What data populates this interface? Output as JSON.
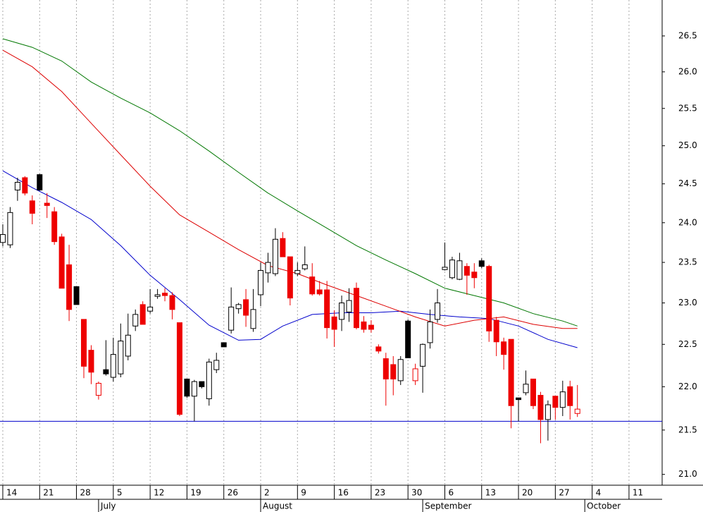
{
  "chart_data": {
    "type": "candlestick",
    "log_scale": true,
    "grid": "x",
    "xlim": [
      -0.38,
      89.5
    ],
    "ylim": [
      20.88,
      27.01
    ],
    "yticks": [
      {
        "value": 21,
        "label": "21.0"
      },
      21.5,
      {
        "value": 22,
        "label": "22.0"
      },
      22.5,
      {
        "value": 23,
        "label": "23.0"
      },
      23.5,
      {
        "value": 24,
        "label": "24.0"
      },
      24.5,
      {
        "value": 25,
        "label": "25.0"
      },
      25.5,
      {
        "value": 26,
        "label": "26.0"
      },
      26.5
    ],
    "xticks": [
      {
        "value": 0,
        "label": "14"
      },
      {
        "value": 5,
        "label": "21"
      },
      {
        "value": 10,
        "label": "28"
      },
      {
        "value": 15,
        "label": "5"
      },
      {
        "value": 20,
        "label": "12"
      },
      {
        "value": 25,
        "label": "19"
      },
      {
        "value": 30,
        "label": "26"
      },
      {
        "value": 35,
        "label": "2"
      },
      {
        "value": 40,
        "label": "9"
      },
      {
        "value": 45,
        "label": "16"
      },
      {
        "value": 50,
        "label": "23"
      },
      {
        "value": 55,
        "label": "30"
      },
      {
        "value": 60,
        "label": "6"
      },
      {
        "value": 65,
        "label": "13"
      },
      {
        "value": 70,
        "label": "20"
      },
      {
        "value": 75,
        "label": "27"
      },
      {
        "value": 80,
        "label": "4"
      },
      {
        "value": 85,
        "label": "11"
      }
    ],
    "month_ticks": [
      {
        "value": 13,
        "label": "July"
      },
      {
        "value": 35,
        "label": "August"
      },
      {
        "value": 57,
        "label": "September"
      },
      {
        "value": 79,
        "label": "October"
      }
    ],
    "palette": {
      "r": "#ee0000",
      "k": "#000000"
    },
    "colors": [
      "k",
      "k",
      "k",
      "r",
      "r",
      "k",
      "r",
      "r",
      "r",
      "r",
      "k",
      "r",
      "r",
      "r",
      "k",
      "k",
      "k",
      "k",
      "k",
      "r",
      "k",
      "k",
      "r",
      "r",
      "r",
      "k",
      "k",
      "k",
      "k",
      "k",
      "k",
      "k",
      "k",
      "r",
      "k",
      "k",
      "k",
      "k",
      "r",
      "r",
      "k",
      "k",
      "r",
      "r",
      "r",
      "r",
      "k",
      "k",
      "r",
      "r",
      "r",
      "r",
      "r",
      "r",
      "k",
      "k",
      "r",
      "k",
      "k",
      "k",
      "k",
      "k",
      "k",
      "r",
      "r",
      "k",
      "r",
      "r",
      "r",
      "r",
      "k",
      "k",
      "r",
      "r",
      "k",
      "r",
      "k",
      "r",
      "r"
    ],
    "open": [
      23.75,
      23.72,
      24.42,
      24.58,
      24.28,
      24.62,
      24.25,
      24.14,
      23.82,
      23.47,
      23.2,
      22.8,
      22.43,
      21.9,
      22.2,
      22.11,
      22.15,
      22.36,
      22.72,
      22.98,
      22.9,
      23.08,
      23.12,
      23.09,
      22.76,
      22.09,
      21.89,
      22.06,
      21.86,
      22.2,
      22.52,
      22.67,
      22.93,
      23.04,
      22.69,
      23.1,
      23.37,
      23.36,
      23.8,
      23.57,
      23.36,
      23.42,
      23.32,
      23.16,
      23.16,
      22.83,
      22.8,
      22.89,
      23.18,
      22.77,
      22.73,
      22.47,
      22.33,
      22.26,
      22.07,
      22.78,
      22.07,
      22.24,
      22.52,
      22.8,
      23.41,
      23.31,
      23.29,
      23.45,
      23.38,
      23.52,
      23.45,
      22.79,
      22.53,
      22.56,
      21.87,
      21.93,
      22.09,
      21.9,
      21.62,
      21.89,
      21.76,
      22.0,
      21.69
    ],
    "high": [
      23.98,
      24.2,
      24.58,
      24.6,
      24.35,
      24.63,
      24.38,
      24.2,
      23.86,
      23.72,
      23.2,
      22.8,
      22.49,
      22.06,
      22.55,
      22.58,
      22.75,
      22.87,
      22.92,
      23.02,
      23.17,
      23.17,
      23.18,
      23.13,
      22.76,
      22.09,
      22.08,
      22.06,
      22.33,
      22.4,
      22.52,
      23.19,
      23.0,
      23.17,
      23.17,
      23.5,
      23.62,
      23.93,
      23.88,
      23.57,
      23.5,
      23.7,
      23.49,
      23.27,
      23.27,
      22.91,
      23.09,
      23.18,
      23.25,
      22.84,
      22.79,
      22.5,
      22.4,
      22.36,
      22.36,
      22.8,
      22.27,
      22.51,
      22.92,
      23.17,
      23.75,
      23.57,
      23.62,
      23.49,
      23.49,
      23.55,
      23.47,
      22.83,
      22.58,
      22.56,
      21.87,
      22.19,
      22.09,
      21.94,
      21.84,
      21.89,
      22.07,
      22.07,
      22.02
    ],
    "low": [
      23.7,
      23.68,
      24.28,
      24.35,
      23.98,
      24.41,
      24.06,
      23.72,
      23.18,
      22.78,
      22.98,
      22.1,
      22.03,
      21.85,
      22.13,
      22.06,
      22.11,
      22.31,
      22.66,
      22.74,
      22.87,
      23.05,
      23.02,
      22.8,
      21.66,
      21.87,
      21.6,
      21.98,
      21.78,
      22.16,
      22.47,
      22.63,
      22.87,
      22.71,
      22.65,
      22.96,
      23.25,
      23.33,
      23.57,
      22.97,
      23.33,
      23.4,
      23.09,
      23.09,
      22.57,
      22.47,
      22.66,
      22.77,
      22.68,
      22.64,
      22.64,
      22.39,
      21.78,
      21.9,
      22.02,
      22.34,
      22.02,
      21.93,
      22.45,
      22.76,
      23.4,
      23.29,
      23.28,
      23.1,
      23.18,
      23.43,
      22.53,
      22.36,
      22.2,
      21.52,
      21.6,
      21.9,
      21.74,
      21.35,
      21.38,
      21.62,
      21.66,
      21.62,
      21.65
    ],
    "close": [
      23.85,
      24.13,
      24.52,
      24.38,
      24.12,
      24.42,
      24.22,
      23.76,
      23.18,
      22.92,
      22.98,
      22.24,
      22.17,
      22.04,
      22.15,
      22.38,
      22.54,
      22.61,
      22.86,
      22.74,
      22.95,
      23.1,
      23.09,
      22.92,
      21.68,
      21.89,
      22.06,
      22.0,
      22.29,
      22.31,
      22.47,
      22.95,
      22.98,
      22.85,
      22.92,
      23.4,
      23.5,
      23.79,
      23.57,
      23.06,
      23.4,
      23.47,
      23.11,
      23.11,
      22.7,
      22.68,
      23.0,
      23.03,
      22.7,
      22.68,
      22.68,
      22.42,
      22.09,
      22.09,
      22.32,
      22.34,
      22.21,
      22.5,
      22.77,
      23.0,
      23.44,
      23.53,
      23.52,
      23.34,
      23.31,
      23.45,
      22.66,
      22.53,
      22.38,
      21.78,
      21.85,
      22.03,
      21.78,
      21.62,
      21.79,
      21.76,
      21.94,
      21.78,
      21.74
    ],
    "series": [
      {
        "color": "#0000cc",
        "x": [
          0,
          4,
          8,
          12,
          16,
          20,
          24,
          28,
          32,
          35,
          38,
          42,
          46,
          50,
          54,
          58,
          62,
          66,
          70,
          74,
          78
        ],
        "values": [
          24.67,
          24.45,
          24.26,
          24.04,
          23.71,
          23.34,
          23.04,
          22.73,
          22.55,
          22.56,
          22.72,
          22.86,
          22.88,
          22.88,
          22.9,
          22.86,
          22.83,
          22.81,
          22.72,
          22.56,
          22.46
        ]
      },
      {
        "color": "#dd0000",
        "x": [
          0,
          4,
          8,
          12,
          16,
          20,
          24,
          28,
          32,
          36,
          40,
          44,
          48,
          52,
          56,
          60,
          64,
          68,
          72,
          76,
          78
        ],
        "values": [
          26.3,
          26.07,
          25.73,
          25.3,
          24.88,
          24.47,
          24.1,
          23.88,
          23.66,
          23.46,
          23.36,
          23.22,
          23.09,
          22.96,
          22.83,
          22.72,
          22.79,
          22.83,
          22.74,
          22.69,
          22.69
        ]
      },
      {
        "color": "#007700",
        "x": [
          0,
          4,
          8,
          12,
          16,
          20,
          24,
          28,
          32,
          36,
          40,
          44,
          48,
          52,
          56,
          60,
          64,
          68,
          72,
          76,
          78
        ],
        "values": [
          26.46,
          26.34,
          26.15,
          25.86,
          25.64,
          25.44,
          25.2,
          24.93,
          24.65,
          24.38,
          24.15,
          23.93,
          23.71,
          23.53,
          23.36,
          23.18,
          23.09,
          23.0,
          22.87,
          22.78,
          22.72
        ]
      }
    ],
    "hline": {
      "value": 21.6,
      "color": "#0000cc"
    }
  }
}
